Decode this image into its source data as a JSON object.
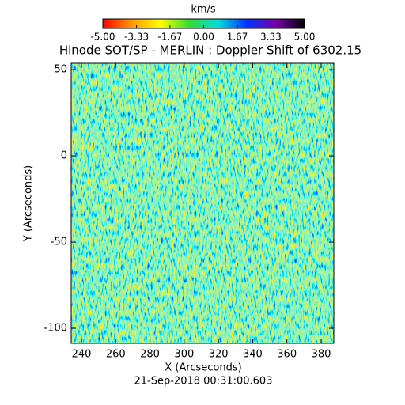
{
  "chart_data": {
    "type": "heatmap",
    "title": "Hinode SOT/SP - MERLIN : Doppler Shift of 6302.15",
    "x_label": "X (Arcseconds)",
    "y_label": "Y (Arcseconds)",
    "date": "21-Sep-2018 00:31:00.603",
    "xlim": [
      234,
      387.4
    ],
    "xticks": [
      240,
      260,
      280,
      300,
      320,
      340,
      360,
      380
    ],
    "ylim": [
      -108.7,
      53.7
    ],
    "yticks": [
      50,
      0,
      -50,
      -100
    ],
    "colorbar": {
      "label": "km/s",
      "lim": [
        -5,
        5
      ],
      "colors": [
        "#ff0000",
        "#ff9900",
        "#ffff00",
        "#33dd33",
        "#00dddd",
        "#0033ff",
        "#7700aa",
        "#000000"
      ],
      "ticks": [
        {
          "value": -5,
          "label": "-5.00"
        },
        {
          "value": -3.33,
          "label": "-3.33"
        },
        {
          "value": -1.67,
          "label": "-1.67"
        },
        {
          "value": 0,
          "label": "0.00"
        },
        {
          "value": 1.67,
          "label": "1.67"
        },
        {
          "value": 3.33,
          "label": "3.33"
        },
        {
          "value": 5,
          "label": "5.00"
        }
      ]
    }
  }
}
